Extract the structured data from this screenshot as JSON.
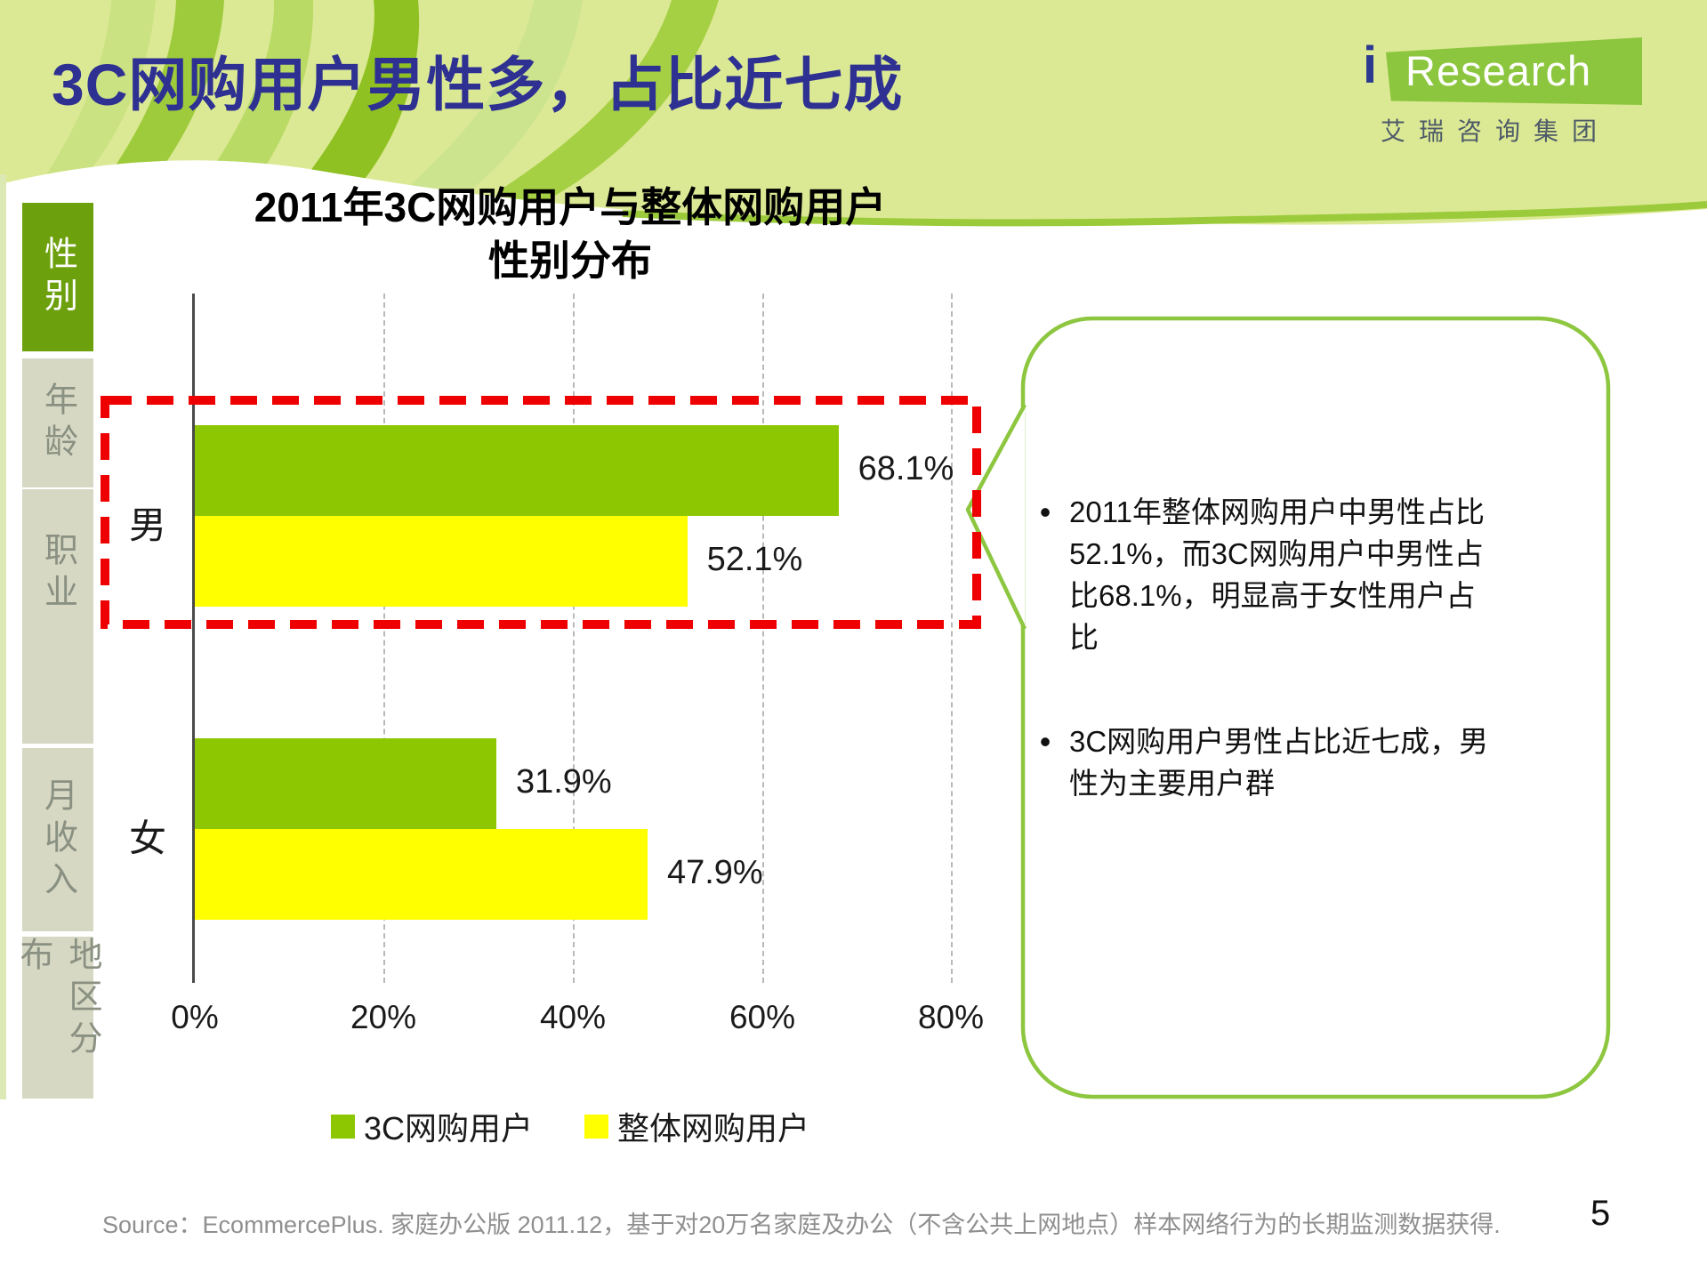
{
  "slide": {
    "title": "3C网购用户男性多，占比近七成",
    "page_number": "5",
    "source_text": "Source：EcommercePlus. 家庭办公版 2011.12，基于对20万名家庭及办公（不含公共上网地点）样本网络行为的长期监测数据获得."
  },
  "logo": {
    "mark_i": "i",
    "mark_text": "Research",
    "company_name": "艾瑞咨询集团",
    "brand_green": "#8cc63e",
    "brand_blue": "#2b3990"
  },
  "sidebar": {
    "items": [
      {
        "label": "性别",
        "active": true
      },
      {
        "label": "年龄",
        "active": false
      },
      {
        "label": "职业",
        "active": false
      },
      {
        "label": "月收入",
        "active": false
      },
      {
        "label": "地区分布",
        "active": false
      }
    ],
    "active_color": "#6ca00d",
    "inactive_color": "#d6d8c3"
  },
  "chart_data": {
    "type": "bar",
    "orientation": "horizontal",
    "title_line1": "2011年3C网购用户与整体网购用户",
    "title_line2": "性别分布",
    "categories": [
      "男",
      "女"
    ],
    "series": [
      {
        "name": "3C网购用户",
        "color": "#8dc702",
        "values": [
          68.1,
          31.9
        ],
        "labels": [
          "68.1%",
          "31.9%"
        ]
      },
      {
        "name": "整体网购用户",
        "color": "#ffff00",
        "values": [
          52.1,
          47.9
        ],
        "labels": [
          "52.1%",
          "47.9%"
        ]
      }
    ],
    "x_ticks": [
      "0%",
      "20%",
      "40%",
      "60%",
      "80%"
    ],
    "xlim": [
      0,
      80
    ],
    "grid": "vertical-dashed",
    "legend_position": "bottom",
    "highlight": {
      "type": "dashed-box",
      "color": "#ef0000",
      "target": "男"
    }
  },
  "callout": {
    "border_color": "#8dc63f",
    "bullets": [
      "2011年整体网购用户中男性占比52.1%，而3C网购用户中男性占比68.1%，明显高于女性用户占比",
      "3C网购用户男性占比近七成，男性为主要用户群"
    ]
  }
}
